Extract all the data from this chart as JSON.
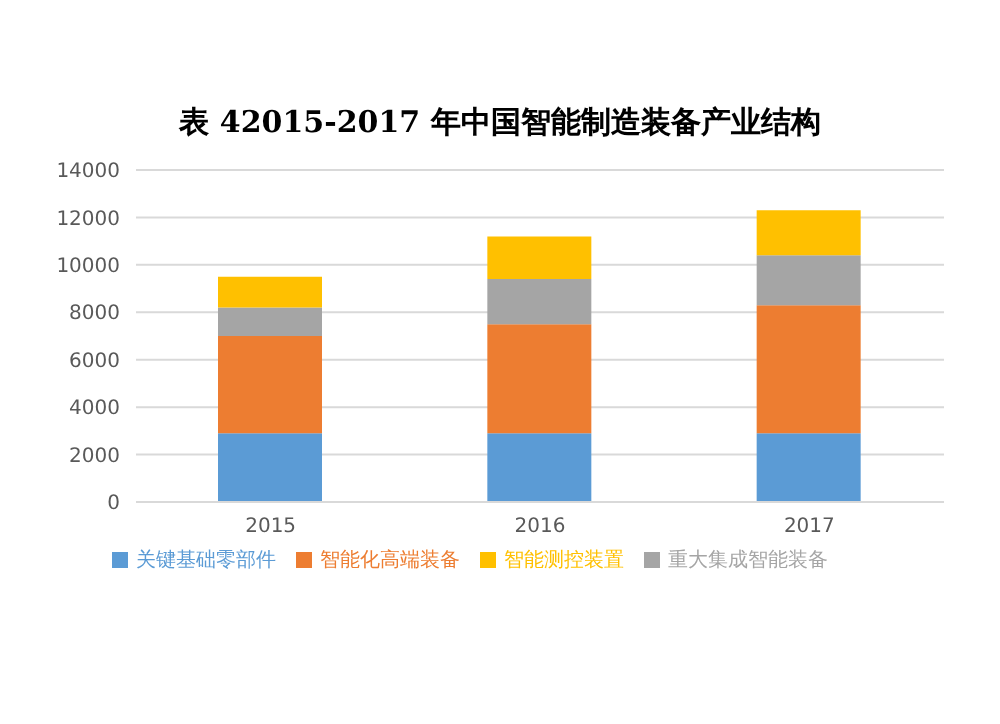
{
  "chart_data": {
    "type": "bar",
    "title": "表 42015-2017 年中国智能制造装备产业结构",
    "categories": [
      "2015",
      "2016",
      "2017"
    ],
    "stacked": true,
    "series": [
      {
        "name": "关键基础零部件",
        "color": "#5b9bd5",
        "values": [
          2900,
          2900,
          2900
        ]
      },
      {
        "name": "智能化高端装备",
        "color": "#ed7d31",
        "values": [
          4100,
          4600,
          5400
        ]
      },
      {
        "name": "重大集成智能装备",
        "color": "#a5a5a5",
        "values": [
          1200,
          1900,
          2100
        ]
      },
      {
        "name": "智能测控装置",
        "color": "#ffc000",
        "values": [
          1300,
          1800,
          1900
        ]
      }
    ],
    "ylim": [
      0,
      14000
    ],
    "yticks": [
      0,
      2000,
      4000,
      6000,
      8000,
      10000,
      12000,
      14000
    ],
    "grid": "y",
    "legend": "bottom"
  }
}
